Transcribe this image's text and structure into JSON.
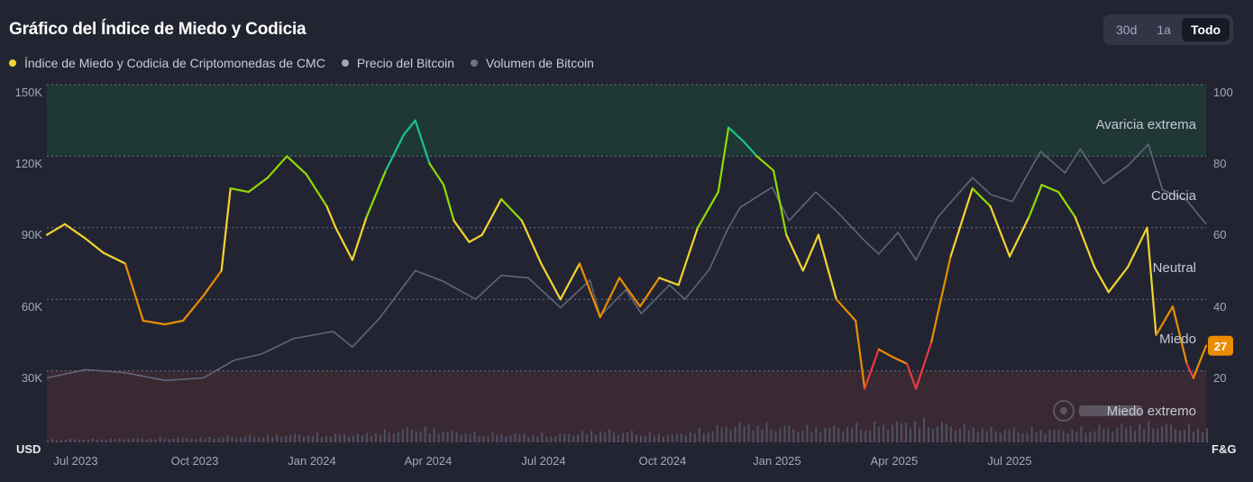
{
  "header": {
    "title": "Gráfico del Índice de Miedo y Codicia",
    "ranges": [
      {
        "label": "30d",
        "active": false
      },
      {
        "label": "1a",
        "active": false
      },
      {
        "label": "Todo",
        "active": true
      }
    ]
  },
  "legend": [
    {
      "label": "Índice de Miedo y Codicia de Criptomonedas de CMC",
      "color": "#f3d42f"
    },
    {
      "label": "Precio del Bitcoin",
      "color": "#a1a7bb"
    },
    {
      "label": "Volumen de Bitcoin",
      "color": "#6c7284"
    }
  ],
  "colors": {
    "extreme_greed": "#16c784",
    "greed": "#93d900",
    "neutral": "#f3d42f",
    "fear": "#ea8c00",
    "extreme_fear": "#ea3943",
    "price_line": "#60657a",
    "volume_bar": "#4d5163",
    "badge": "#ea8c00"
  },
  "chart_data": {
    "type": "line",
    "x_ticks": [
      "Jul 2023",
      "Oct 2023",
      "Jan 2024",
      "Apr 2024",
      "Jul 2024",
      "Oct 2024",
      "Jan 2025",
      "Apr 2025",
      "Jul 2025"
    ],
    "left_axis": {
      "unit_label": "USD",
      "ticks": [
        "150K",
        "120K",
        "90K",
        "60K",
        "30K"
      ],
      "ylim": [
        0,
        150000
      ]
    },
    "right_axis": {
      "unit_label": "F&G",
      "ticks": [
        "100",
        "80",
        "60",
        "40",
        "20"
      ],
      "ylim": [
        0,
        100
      ]
    },
    "zones": [
      "Avaricia extrema",
      "Codicia",
      "Neutral",
      "Miedo",
      "Miedo extremo"
    ],
    "current_value": "27",
    "x_range": [
      "2023-06-01",
      "2025-11-20"
    ],
    "series": [
      {
        "name": "Índice de Miedo y Codicia de Criptomonedas de CMC",
        "axis": "right",
        "points": [
          [
            "2023-06-01",
            58
          ],
          [
            "2023-06-15",
            61
          ],
          [
            "2023-07-01",
            57
          ],
          [
            "2023-07-15",
            53
          ],
          [
            "2023-08-01",
            50
          ],
          [
            "2023-08-15",
            34
          ],
          [
            "2023-09-01",
            33
          ],
          [
            "2023-09-15",
            34
          ],
          [
            "2023-10-01",
            41
          ],
          [
            "2023-10-15",
            48
          ],
          [
            "2023-10-22",
            71
          ],
          [
            "2023-11-05",
            70
          ],
          [
            "2023-11-20",
            74
          ],
          [
            "2023-12-05",
            80
          ],
          [
            "2023-12-20",
            75
          ],
          [
            "2024-01-05",
            66
          ],
          [
            "2024-01-12",
            60
          ],
          [
            "2024-01-25",
            51
          ],
          [
            "2024-02-05",
            63
          ],
          [
            "2024-02-20",
            76
          ],
          [
            "2024-03-05",
            86
          ],
          [
            "2024-03-14",
            90
          ],
          [
            "2024-03-25",
            78
          ],
          [
            "2024-04-05",
            72
          ],
          [
            "2024-04-13",
            62
          ],
          [
            "2024-04-25",
            56
          ],
          [
            "2024-05-05",
            58
          ],
          [
            "2024-05-20",
            68
          ],
          [
            "2024-06-05",
            62
          ],
          [
            "2024-06-20",
            50
          ],
          [
            "2024-07-05",
            40
          ],
          [
            "2024-07-20",
            50
          ],
          [
            "2024-08-05",
            35
          ],
          [
            "2024-08-20",
            46
          ],
          [
            "2024-09-05",
            38
          ],
          [
            "2024-09-20",
            46
          ],
          [
            "2024-10-05",
            44
          ],
          [
            "2024-10-20",
            60
          ],
          [
            "2024-11-05",
            70
          ],
          [
            "2024-11-13",
            88
          ],
          [
            "2024-11-25",
            84
          ],
          [
            "2024-12-05",
            80
          ],
          [
            "2024-12-18",
            76
          ],
          [
            "2024-12-28",
            58
          ],
          [
            "2025-01-10",
            48
          ],
          [
            "2025-01-22",
            58
          ],
          [
            "2025-02-05",
            40
          ],
          [
            "2025-02-20",
            34
          ],
          [
            "2025-02-27",
            15
          ],
          [
            "2025-03-10",
            26
          ],
          [
            "2025-03-20",
            24
          ],
          [
            "2025-04-01",
            22
          ],
          [
            "2025-04-08",
            15
          ],
          [
            "2025-04-20",
            28
          ],
          [
            "2025-05-05",
            52
          ],
          [
            "2025-05-22",
            71
          ],
          [
            "2025-06-05",
            66
          ],
          [
            "2025-06-20",
            52
          ],
          [
            "2025-07-05",
            63
          ],
          [
            "2025-07-15",
            72
          ],
          [
            "2025-07-28",
            70
          ],
          [
            "2025-08-10",
            63
          ],
          [
            "2025-08-25",
            49
          ],
          [
            "2025-09-05",
            42
          ],
          [
            "2025-09-20",
            49
          ],
          [
            "2025-10-05",
            60
          ],
          [
            "2025-10-12",
            30
          ],
          [
            "2025-10-25",
            38
          ],
          [
            "2025-11-05",
            22
          ],
          [
            "2025-11-10",
            18
          ],
          [
            "2025-11-20",
            27
          ]
        ]
      },
      {
        "name": "Precio del Bitcoin",
        "axis": "left",
        "points": [
          [
            "2023-06-01",
            27000
          ],
          [
            "2023-07-01",
            30500
          ],
          [
            "2023-08-01",
            29200
          ],
          [
            "2023-09-01",
            26000
          ],
          [
            "2023-10-01",
            27000
          ],
          [
            "2023-10-25",
            34500
          ],
          [
            "2023-11-15",
            37000
          ],
          [
            "2023-12-10",
            43500
          ],
          [
            "2024-01-10",
            46500
          ],
          [
            "2024-01-25",
            40000
          ],
          [
            "2024-02-15",
            52000
          ],
          [
            "2024-03-14",
            72000
          ],
          [
            "2024-04-05",
            67500
          ],
          [
            "2024-04-30",
            60000
          ],
          [
            "2024-05-20",
            70000
          ],
          [
            "2024-06-10",
            69000
          ],
          [
            "2024-07-05",
            56500
          ],
          [
            "2024-07-28",
            68000
          ],
          [
            "2024-08-05",
            53000
          ],
          [
            "2024-08-25",
            64000
          ],
          [
            "2024-09-06",
            54000
          ],
          [
            "2024-09-28",
            66000
          ],
          [
            "2024-10-10",
            60000
          ],
          [
            "2024-10-29",
            72500
          ],
          [
            "2024-11-12",
            89000
          ],
          [
            "2024-11-22",
            98500
          ],
          [
            "2024-12-17",
            107000
          ],
          [
            "2024-12-30",
            93000
          ],
          [
            "2025-01-20",
            105000
          ],
          [
            "2025-02-05",
            97000
          ],
          [
            "2025-02-28",
            84000
          ],
          [
            "2025-03-10",
            79000
          ],
          [
            "2025-03-25",
            88000
          ],
          [
            "2025-04-08",
            76500
          ],
          [
            "2025-04-25",
            94500
          ],
          [
            "2025-05-22",
            111000
          ],
          [
            "2025-06-05",
            104000
          ],
          [
            "2025-06-22",
            101000
          ],
          [
            "2025-07-14",
            122000
          ],
          [
            "2025-08-02",
            113000
          ],
          [
            "2025-08-14",
            123000
          ],
          [
            "2025-09-01",
            108500
          ],
          [
            "2025-09-20",
            116000
          ],
          [
            "2025-10-06",
            125000
          ],
          [
            "2025-10-17",
            106000
          ],
          [
            "2025-11-05",
            101500
          ],
          [
            "2025-11-20",
            91500
          ]
        ]
      },
      {
        "name": "Volumen de Bitcoin",
        "axis": "left",
        "points": [
          [
            "2023-06-01",
            1500
          ],
          [
            "2023-08-01",
            2000
          ],
          [
            "2023-10-01",
            2500
          ],
          [
            "2023-12-01",
            4000
          ],
          [
            "2024-02-01",
            4200
          ],
          [
            "2024-03-14",
            7500
          ],
          [
            "2024-05-01",
            4500
          ],
          [
            "2024-07-01",
            4000
          ],
          [
            "2024-08-05",
            6000
          ],
          [
            "2024-10-01",
            4000
          ],
          [
            "2024-11-20",
            9500
          ],
          [
            "2025-01-15",
            7500
          ],
          [
            "2025-03-05",
            9000
          ],
          [
            "2025-04-08",
            11000
          ],
          [
            "2025-06-01",
            7000
          ],
          [
            "2025-08-01",
            6500
          ],
          [
            "2025-10-10",
            9500
          ],
          [
            "2025-11-20",
            7000
          ]
        ]
      }
    ]
  }
}
